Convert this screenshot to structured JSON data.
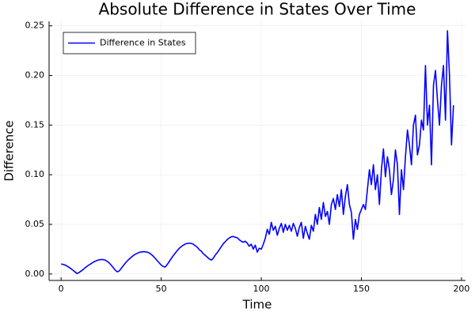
{
  "chart_data": {
    "type": "line",
    "title": "Absolute Difference in States Over Time",
    "xlabel": "Time",
    "ylabel": "Difference",
    "x": [
      0,
      1,
      2,
      3,
      4,
      5,
      6,
      7,
      8,
      9,
      10,
      11,
      12,
      13,
      14,
      15,
      16,
      17,
      18,
      19,
      20,
      21,
      22,
      23,
      24,
      25,
      26,
      27,
      28,
      29,
      30,
      31,
      32,
      33,
      34,
      35,
      36,
      37,
      38,
      39,
      40,
      41,
      42,
      43,
      44,
      45,
      46,
      47,
      48,
      49,
      50,
      51,
      52,
      53,
      54,
      55,
      56,
      57,
      58,
      59,
      60,
      61,
      62,
      63,
      64,
      65,
      66,
      67,
      68,
      69,
      70,
      71,
      72,
      73,
      74,
      75,
      76,
      77,
      78,
      79,
      80,
      81,
      82,
      83,
      84,
      85,
      86,
      87,
      88,
      89,
      90,
      91,
      92,
      93,
      94,
      95,
      96,
      97,
      98,
      99,
      100,
      101,
      102,
      103,
      104,
      105,
      106,
      107,
      108,
      109,
      110,
      111,
      112,
      113,
      114,
      115,
      116,
      117,
      118,
      119,
      120,
      121,
      122,
      123,
      124,
      125,
      126,
      127,
      128,
      129,
      130,
      131,
      132,
      133,
      134,
      135,
      136,
      137,
      138,
      139,
      140,
      141,
      142,
      143,
      144,
      145,
      146,
      147,
      148,
      149,
      150,
      151,
      152,
      153,
      154,
      155,
      156,
      157,
      158,
      159,
      160,
      161,
      162,
      163,
      164,
      165,
      166,
      167,
      168,
      169,
      170,
      171,
      172,
      173,
      174,
      175,
      176,
      177,
      178,
      179,
      180,
      181,
      182,
      183,
      184,
      185,
      186,
      187,
      188,
      189,
      190,
      191,
      192,
      193,
      194,
      195,
      196
    ],
    "series": [
      {
        "name": "Difference in States",
        "color": "#0000ff",
        "values": [
          0.01,
          0.0097,
          0.009,
          0.008,
          0.0067,
          0.0052,
          0.0036,
          0.002,
          0.0005,
          0.0015,
          0.003,
          0.0045,
          0.0062,
          0.0078,
          0.0092,
          0.0105,
          0.0118,
          0.0128,
          0.0137,
          0.0143,
          0.0146,
          0.0145,
          0.014,
          0.0128,
          0.0112,
          0.009,
          0.0065,
          0.004,
          0.0022,
          0.003,
          0.0055,
          0.0082,
          0.0108,
          0.013,
          0.015,
          0.0168,
          0.0185,
          0.0198,
          0.0208,
          0.0217,
          0.0222,
          0.0225,
          0.0224,
          0.022,
          0.0212,
          0.0198,
          0.018,
          0.0158,
          0.0135,
          0.0112,
          0.009,
          0.0075,
          0.007,
          0.0095,
          0.0125,
          0.0155,
          0.0185,
          0.021,
          0.0235,
          0.0258,
          0.0275,
          0.029,
          0.0302,
          0.0308,
          0.031,
          0.0308,
          0.03,
          0.0285,
          0.027,
          0.0245,
          0.023,
          0.0205,
          0.0188,
          0.017,
          0.0152,
          0.014,
          0.0158,
          0.019,
          0.0215,
          0.0245,
          0.0275,
          0.0305,
          0.0325,
          0.0348,
          0.0362,
          0.0375,
          0.0378,
          0.037,
          0.0365,
          0.0345,
          0.033,
          0.032,
          0.033,
          0.031,
          0.028,
          0.03,
          0.025,
          0.029,
          0.022,
          0.026,
          0.025,
          0.03,
          0.036,
          0.045,
          0.04,
          0.052,
          0.044,
          0.048,
          0.039,
          0.046,
          0.051,
          0.042,
          0.05,
          0.044,
          0.049,
          0.043,
          0.051,
          0.046,
          0.038,
          0.047,
          0.052,
          0.036,
          0.048,
          0.041,
          0.035,
          0.049,
          0.043,
          0.06,
          0.05,
          0.067,
          0.055,
          0.072,
          0.058,
          0.063,
          0.05,
          0.07,
          0.076,
          0.065,
          0.08,
          0.068,
          0.085,
          0.06,
          0.078,
          0.09,
          0.07,
          0.062,
          0.035,
          0.055,
          0.045,
          0.06,
          0.065,
          0.07,
          0.065,
          0.085,
          0.105,
          0.09,
          0.11,
          0.085,
          0.1,
          0.07,
          0.105,
          0.126,
          0.098,
          0.118,
          0.105,
          0.08,
          0.095,
          0.125,
          0.11,
          0.06,
          0.105,
          0.085,
          0.118,
          0.145,
          0.13,
          0.11,
          0.15,
          0.16,
          0.12,
          0.13,
          0.155,
          0.145,
          0.21,
          0.15,
          0.17,
          0.11,
          0.19,
          0.205,
          0.175,
          0.15,
          0.19,
          0.21,
          0.155,
          0.245,
          0.2,
          0.13,
          0.17
        ]
      }
    ],
    "xlim": [
      -6,
      202
    ],
    "xticks": [
      0,
      50,
      100,
      150,
      200
    ],
    "ylim": [
      -0.0065,
      0.2545
    ],
    "yticks": [
      {
        "value": 0,
        "label": "0.00"
      },
      {
        "value": 0.05,
        "label": "0.05"
      },
      {
        "value": 0.1,
        "label": "0.10"
      },
      {
        "value": 0.15,
        "label": "0.15"
      },
      {
        "value": 0.2,
        "label": "0.20"
      },
      {
        "value": 0.25,
        "label": "0.25"
      }
    ],
    "grid": true,
    "legend": "top-left"
  }
}
